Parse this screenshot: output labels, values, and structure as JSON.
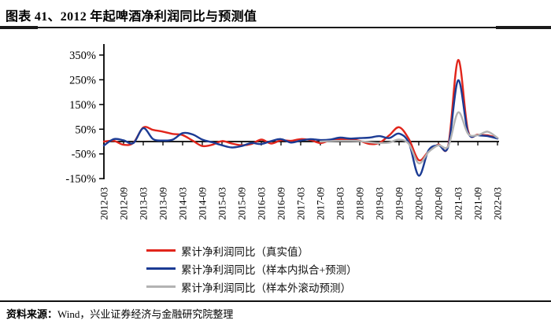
{
  "page": {
    "title": "图表 41、2012 年起啤酒净利润同比与预测值",
    "source_label": "资料来源：",
    "source_text": "Wind，兴业证券经济与金融研究院整理"
  },
  "chart_data": {
    "type": "line",
    "title": "2012 年起啤酒净利润同比与预测值",
    "xlabel": "",
    "ylabel": "",
    "x_tick_labels": [
      "2012-03",
      "2012-09",
      "2013-03",
      "2013-09",
      "2014-03",
      "2014-09",
      "2015-03",
      "2015-09",
      "2016-03",
      "2016-09",
      "2017-03",
      "2017-09",
      "2018-03",
      "2018-09",
      "2019-03",
      "2019-09",
      "2020-03",
      "2020-09",
      "2021-03",
      "2021-09",
      "2022-03"
    ],
    "x_points_per_tick": 2,
    "x_note": "quarterly data points from 2012-03 to 2022-03",
    "y_tick_labels": [
      "350%",
      "250%",
      "150%",
      "50%",
      "-50%",
      "-150%"
    ],
    "y_ticks": [
      350,
      250,
      150,
      50,
      -50,
      -150
    ],
    "ylim": [
      -150,
      390
    ],
    "grid": false,
    "legend_position": "bottom",
    "axis_color": "#000000",
    "series": [
      {
        "name": "累计净利润同比（真实值）",
        "color": "#e1251b",
        "values": [
          0,
          3,
          -13,
          -5,
          57,
          47,
          40,
          31,
          26,
          4,
          -18,
          -13,
          2,
          -8,
          -15,
          -10,
          8,
          -8,
          5,
          3,
          10,
          6,
          -6,
          5,
          10,
          9,
          3,
          -10,
          -5,
          25,
          58,
          10,
          -75,
          -40,
          -12,
          -15,
          330,
          45,
          28,
          25,
          15
        ]
      },
      {
        "name": "累计净利润同比（样本内拟合+预测）",
        "color": "#1b3b94",
        "values": [
          -16,
          10,
          5,
          -6,
          54,
          10,
          4,
          8,
          34,
          29,
          8,
          -3,
          -15,
          -24,
          -18,
          -6,
          -10,
          2,
          10,
          -4,
          4,
          10,
          6,
          8,
          16,
          12,
          14,
          16,
          22,
          14,
          32,
          -6,
          -138,
          -35,
          -15,
          -20,
          248,
          38,
          26,
          22,
          12
        ]
      },
      {
        "name": "累计净利润同比（样本外滚动预测）",
        "color": "#b3b3b3",
        "values": [
          null,
          null,
          null,
          null,
          null,
          null,
          null,
          null,
          null,
          null,
          null,
          null,
          null,
          null,
          null,
          null,
          null,
          null,
          null,
          null,
          null,
          null,
          0,
          2,
          3,
          3,
          2,
          -3,
          -6,
          -4,
          8,
          -10,
          -88,
          -42,
          -15,
          -18,
          118,
          32,
          26,
          40,
          15
        ]
      }
    ]
  }
}
